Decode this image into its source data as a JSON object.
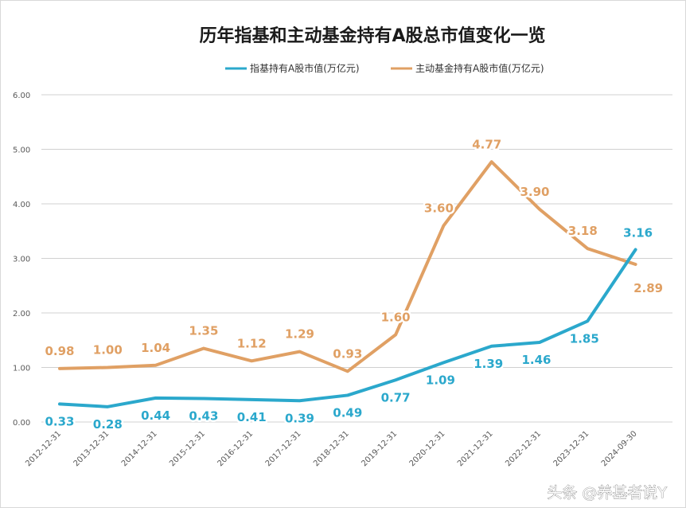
{
  "chart_data": {
    "type": "line",
    "title": "历年指基和主动基金持有A股总市值变化一览",
    "xlabel": "",
    "ylabel": "",
    "ylim": [
      0,
      6
    ],
    "yticks": [
      "0.00",
      "1.00",
      "2.00",
      "3.00",
      "4.00",
      "5.00",
      "6.00"
    ],
    "grid": true,
    "legend_position": "top",
    "categories": [
      "2012-12-31",
      "2013-12-31",
      "2014-12-31",
      "2015-12-31",
      "2016-12-31",
      "2017-12-31",
      "2018-12-31",
      "2019-12-31",
      "2020-12-31",
      "2021-12-31",
      "2022-12-31",
      "2023-12-31",
      "2024-09-30"
    ],
    "series": [
      {
        "name": "指基持有A股市值(万亿元)",
        "color": "#2ba8cc",
        "values": [
          0.33,
          0.28,
          0.44,
          0.43,
          0.41,
          0.39,
          0.49,
          0.77,
          1.09,
          1.39,
          1.46,
          1.85,
          3.16
        ],
        "labels": [
          "0.33",
          "0.28",
          "0.44",
          "0.43",
          "0.41",
          "0.39",
          "0.49",
          "0.77",
          "1.09",
          "1.39",
          "1.46",
          "1.85",
          "3.16"
        ]
      },
      {
        "name": "主动基金持有A股市值(万亿元)",
        "color": "#e0a064",
        "values": [
          0.98,
          1.0,
          1.04,
          1.35,
          1.12,
          1.29,
          0.93,
          1.6,
          3.6,
          4.77,
          3.9,
          3.18,
          2.89
        ],
        "labels": [
          "0.98",
          "1.00",
          "1.04",
          "1.35",
          "1.12",
          "1.29",
          "0.93",
          "1.60",
          "3.60",
          "4.77",
          "3.90",
          "3.18",
          "2.89"
        ]
      }
    ]
  },
  "watermark": "头条 @养基者说Y"
}
